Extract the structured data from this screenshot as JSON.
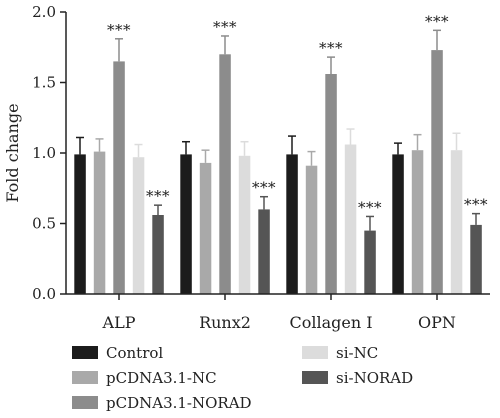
{
  "chart_data": {
    "type": "bar",
    "ylabel": "Fold change",
    "xlabel": "",
    "ylim": [
      0,
      2.0
    ],
    "yticks": [
      "0.0",
      "0.5",
      "1.0",
      "1.5",
      "2.0"
    ],
    "categories": [
      "ALP",
      "Runx2",
      "Collagen I",
      "OPN"
    ],
    "grid": false,
    "legend_position": "bottom",
    "series": [
      {
        "name": "Control",
        "color": "#1c1c1c",
        "values": [
          0.99,
          0.99,
          0.99,
          0.99
        ],
        "errors": [
          0.12,
          0.09,
          0.13,
          0.08
        ],
        "significance": [
          "",
          "",
          "",
          ""
        ]
      },
      {
        "name": "pCDNA3.1-NC",
        "color": "#a9a9a9",
        "values": [
          1.01,
          0.93,
          0.91,
          1.02
        ],
        "errors": [
          0.09,
          0.09,
          0.1,
          0.11
        ],
        "significance": [
          "",
          "",
          "",
          ""
        ]
      },
      {
        "name": "pCDNA3.1-NORAD",
        "color": "#8c8c8c",
        "values": [
          1.65,
          1.7,
          1.56,
          1.73
        ],
        "errors": [
          0.16,
          0.13,
          0.12,
          0.14
        ],
        "significance": [
          "***",
          "***",
          "***",
          "***"
        ]
      },
      {
        "name": "si-NC",
        "color": "#dcdcdc",
        "values": [
          0.97,
          0.98,
          1.06,
          1.02
        ],
        "errors": [
          0.09,
          0.1,
          0.11,
          0.12
        ],
        "significance": [
          "",
          "",
          "",
          ""
        ]
      },
      {
        "name": "si-NORAD",
        "color": "#555555",
        "values": [
          0.56,
          0.6,
          0.45,
          0.49
        ],
        "errors": [
          0.07,
          0.09,
          0.1,
          0.08
        ],
        "significance": [
          "***",
          "***",
          "***",
          "***"
        ]
      }
    ]
  }
}
